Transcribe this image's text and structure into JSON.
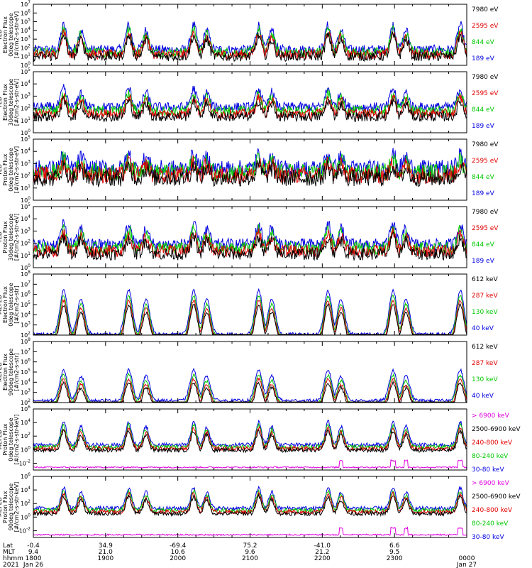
{
  "chart_data": [
    {
      "type": "line",
      "ylabel_lines": [
        "TED",
        "Electron Flux",
        "0deg telescope",
        "[#/cm2-s-str-eV]"
      ],
      "yscale": "log",
      "ylim_exp": [
        0,
        7
      ],
      "ytick_labels": [
        "10^0",
        "10^1",
        "10^2",
        "10^3",
        "10^4",
        "10^5",
        "10^6",
        "10^7"
      ],
      "legend": [
        {
          "label": "7980 eV",
          "color": "#000000"
        },
        {
          "label": "2595 eV",
          "color": "#e00000"
        },
        {
          "label": "844 eV",
          "color": "#00c800"
        },
        {
          "label": "189 eV",
          "color": "#0000e0"
        }
      ],
      "base": 1.8,
      "peak": 4.6,
      "noise": 0.55,
      "pattern": "electron"
    },
    {
      "type": "line",
      "ylabel_lines": [
        "TED",
        "Electron Flux",
        "30deg telescope",
        "[#/cm2-s-str-eV]"
      ],
      "yscale": "log",
      "ylim_exp": [
        0,
        5
      ],
      "ytick_labels": [
        "10^0",
        "10^1",
        "10^2",
        "10^3",
        "10^4",
        "10^5"
      ],
      "legend": [
        {
          "label": "7980 eV",
          "color": "#000000"
        },
        {
          "label": "2595 eV",
          "color": "#e00000"
        },
        {
          "label": "844 eV",
          "color": "#00c800"
        },
        {
          "label": "189 eV",
          "color": "#0000e0"
        }
      ],
      "base": 2.1,
      "peak": 3.6,
      "noise": 0.4,
      "pattern": "electron"
    },
    {
      "type": "line",
      "ylabel_lines": [
        "TED",
        "Proton Flux",
        "0deg telescope",
        "[#/cm2-s-str-eV]"
      ],
      "yscale": "log",
      "ylim_exp": [
        0,
        5
      ],
      "ytick_labels": [
        "10^0",
        "10^1",
        "10^2",
        "10^3",
        "10^4",
        "10^5"
      ],
      "legend": [
        {
          "label": "7980 eV",
          "color": "#000000"
        },
        {
          "label": "2595 eV",
          "color": "#e00000"
        },
        {
          "label": "844 eV",
          "color": "#00c800"
        },
        {
          "label": "189 eV",
          "color": "#0000e0"
        }
      ],
      "base": 2.6,
      "peak": 3.7,
      "noise": 0.7,
      "pattern": "proton"
    },
    {
      "type": "line",
      "ylabel_lines": [
        "TED",
        "Proton Flux",
        "30deg telescope",
        "[#/cm2-s-str-eV]"
      ],
      "yscale": "log",
      "ylim_exp": [
        0,
        5
      ],
      "ytick_labels": [
        "10^0",
        "10^1",
        "10^2",
        "10^3",
        "10^4",
        "10^5"
      ],
      "legend": [
        {
          "label": "7980 eV",
          "color": "#000000"
        },
        {
          "label": "2595 eV",
          "color": "#e00000"
        },
        {
          "label": "844 eV",
          "color": "#00c800"
        },
        {
          "label": "189 eV",
          "color": "#0000e0"
        }
      ],
      "base": 1.9,
      "peak": 3.5,
      "noise": 0.5,
      "pattern": "proton"
    },
    {
      "type": "line",
      "ylabel_lines": [
        "MEPED",
        "Electron Flux",
        "0deg telescope",
        "[#/cm2-s-str]"
      ],
      "yscale": "log",
      "ylim_exp": [
        2,
        8
      ],
      "ytick_labels": [
        "10^2",
        "10^3",
        "10^4",
        "10^5",
        "10^6",
        "10^7",
        "10^8"
      ],
      "legend": [
        {
          "label": "612 keV",
          "color": "#000000"
        },
        {
          "label": "287 keV",
          "color": "#e00000"
        },
        {
          "label": "130 keV",
          "color": "#00c800"
        },
        {
          "label": "40 keV",
          "color": "#0000e0"
        }
      ],
      "base": 2.1,
      "peak": 6.4,
      "noise": 0.15,
      "pattern": "meped_e"
    },
    {
      "type": "line",
      "ylabel_lines": [
        "MEPED",
        "Electron Flux",
        "90deg telescope",
        "[#/cm2-s-str]"
      ],
      "yscale": "log",
      "ylim_exp": [
        2,
        8
      ],
      "ytick_labels": [
        "10^2",
        "10^3",
        "10^4",
        "10^5",
        "10^6",
        "10^7",
        "10^8"
      ],
      "legend": [
        {
          "label": "612 keV",
          "color": "#000000"
        },
        {
          "label": "287 keV",
          "color": "#e00000"
        },
        {
          "label": "130 keV",
          "color": "#00c800"
        },
        {
          "label": "40 keV",
          "color": "#0000e0"
        }
      ],
      "base": 2.2,
      "peak": 5.2,
      "noise": 0.15,
      "pattern": "meped_e"
    },
    {
      "type": "line",
      "ylabel_lines": [
        "MEPED",
        "Proton Flux",
        "0deg telescope",
        "[#/cm2-s-str-keV]"
      ],
      "yscale": "log",
      "ylim_exp": [
        -3,
        6
      ],
      "ytick_labels": [
        "10^-2",
        "10^0",
        "10^2",
        "10^4",
        "10^6"
      ],
      "ytick_exps": [
        -2,
        0,
        2,
        4,
        6
      ],
      "legend": [
        {
          "label": "> 6900 keV",
          "color": "#e000e0"
        },
        {
          "label": "2500-6900 keV",
          "color": "#000000"
        },
        {
          "label": "240-800 keV",
          "color": "#e00000"
        },
        {
          "label": "80-240 keV",
          "color": "#00c800"
        },
        {
          "label": "30-80 keV",
          "color": "#0000e0"
        }
      ],
      "base": 0.7,
      "peak": 4.1,
      "noise": 0.3,
      "pattern": "meped_p"
    },
    {
      "type": "line",
      "ylabel_lines": [
        "MEPED",
        "Proton Flux",
        "90deg telescope",
        "[#/cm2-s-str-keV]"
      ],
      "yscale": "log",
      "ylim_exp": [
        -3,
        6
      ],
      "ytick_labels": [
        "10^-2",
        "10^0",
        "10^2",
        "10^4",
        "10^6"
      ],
      "ytick_exps": [
        -2,
        0,
        2,
        4,
        6
      ],
      "legend": [
        {
          "label": "> 6900 keV",
          "color": "#e000e0"
        },
        {
          "label": "2500-6900 keV",
          "color": "#000000"
        },
        {
          "label": "240-800 keV",
          "color": "#e00000"
        },
        {
          "label": "80-240 keV",
          "color": "#00c800"
        },
        {
          "label": "30-80 keV",
          "color": "#0000e0"
        }
      ],
      "base": 1.3,
      "peak": 4.3,
      "noise": 0.3,
      "pattern": "meped_p"
    }
  ],
  "xaxis": {
    "row_labels": [
      "Lat",
      "MLT",
      "hhmm",
      "2021"
    ],
    "ticks": [
      {
        "lat": "-0.4",
        "mlt": "9.4",
        "hhmm": "1800",
        "date": "Jan 26"
      },
      {
        "lat": "34.9",
        "mlt": "21.0",
        "hhmm": "1900",
        "date": ""
      },
      {
        "lat": "-69.4",
        "mlt": "10.6",
        "hhmm": "2000",
        "date": ""
      },
      {
        "lat": "75.2",
        "mlt": "9.6",
        "hhmm": "2100",
        "date": ""
      },
      {
        "lat": "-41.0",
        "mlt": "21.2",
        "hhmm": "2200",
        "date": ""
      },
      {
        "lat": "6.6",
        "mlt": "9.5",
        "hhmm": "2300",
        "date": ""
      },
      {
        "lat": "",
        "mlt": "",
        "hhmm": "0000",
        "date": "Jan 27"
      }
    ],
    "minor_per_major": 4
  }
}
